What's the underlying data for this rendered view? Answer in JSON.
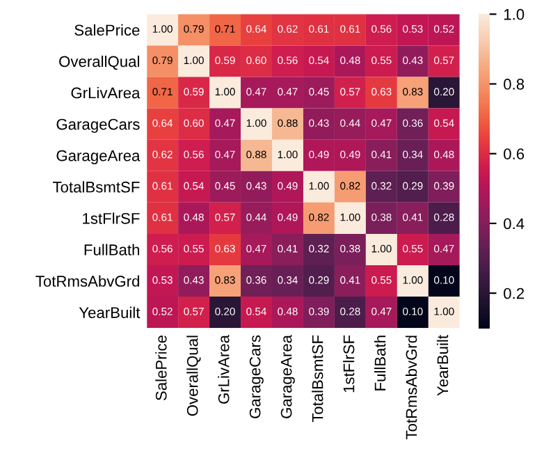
{
  "chart_data": {
    "type": "heatmap",
    "categories": [
      "SalePrice",
      "OverallQual",
      "GrLivArea",
      "GarageCars",
      "GarageArea",
      "TotalBsmtSF",
      "1stFlrSF",
      "FullBath",
      "TotRmsAbvGrd",
      "YearBuilt"
    ],
    "y_categories": [
      "SalePrice",
      "OverallQual",
      "GrLivArea",
      "GarageCars",
      "GarageArea",
      "TotalBsmtSF",
      "1stFlrSF",
      "FullBath",
      "TotRmsAbvGrd",
      "YearBuilt"
    ],
    "cells": [
      [
        1.0,
        0.79,
        0.71,
        0.64,
        0.62,
        0.61,
        0.61,
        0.56,
        0.53,
        0.52
      ],
      [
        0.79,
        1.0,
        0.59,
        0.6,
        0.56,
        0.54,
        0.48,
        0.55,
        0.43,
        0.57
      ],
      [
        0.71,
        0.59,
        1.0,
        0.47,
        0.47,
        0.45,
        0.57,
        0.63,
        0.83,
        0.2
      ],
      [
        0.64,
        0.6,
        0.47,
        1.0,
        0.88,
        0.43,
        0.44,
        0.47,
        0.36,
        0.54
      ],
      [
        0.62,
        0.56,
        0.47,
        0.88,
        1.0,
        0.49,
        0.49,
        0.41,
        0.34,
        0.48
      ],
      [
        0.61,
        0.54,
        0.45,
        0.43,
        0.49,
        1.0,
        0.82,
        0.32,
        0.29,
        0.39
      ],
      [
        0.61,
        0.48,
        0.57,
        0.44,
        0.49,
        0.82,
        1.0,
        0.38,
        0.41,
        0.28
      ],
      [
        0.56,
        0.55,
        0.63,
        0.47,
        0.41,
        0.32,
        0.38,
        1.0,
        0.55,
        0.47
      ],
      [
        0.53,
        0.43,
        0.83,
        0.36,
        0.34,
        0.29,
        0.41,
        0.55,
        1.0,
        0.1
      ],
      [
        0.52,
        0.57,
        0.2,
        0.54,
        0.48,
        0.39,
        0.28,
        0.47,
        0.1,
        1.0
      ]
    ],
    "cell_labels": [
      [
        "1.00",
        "0.79",
        "0.71",
        "0.64",
        "0.62",
        "0.61",
        "0.61",
        "0.56",
        "0.53",
        "0.52"
      ],
      [
        "0.79",
        "1.00",
        "0.59",
        "0.60",
        "0.56",
        "0.54",
        "0.48",
        "0.55",
        "0.43",
        "0.57"
      ],
      [
        "0.71",
        "0.59",
        "1.00",
        "0.47",
        "0.47",
        "0.45",
        "0.57",
        "0.63",
        "0.83",
        "0.20"
      ],
      [
        "0.64",
        "0.60",
        "0.47",
        "1.00",
        "0.88",
        "0.43",
        "0.44",
        "0.47",
        "0.36",
        "0.54"
      ],
      [
        "0.62",
        "0.56",
        "0.47",
        "0.88",
        "1.00",
        "0.49",
        "0.49",
        "0.41",
        "0.34",
        "0.48"
      ],
      [
        "0.61",
        "0.54",
        "0.45",
        "0.43",
        "0.49",
        "1.00",
        "0.82",
        "0.32",
        "0.29",
        "0.39"
      ],
      [
        "0.61",
        "0.48",
        "0.57",
        "0.44",
        "0.49",
        "0.82",
        "1.00",
        "0.38",
        "0.41",
        "0.28"
      ],
      [
        "0.56",
        "0.55",
        "0.63",
        "0.47",
        "0.41",
        "0.32",
        "0.38",
        "1.00",
        "0.55",
        "0.47"
      ],
      [
        "0.53",
        "0.43",
        "0.83",
        "0.36",
        "0.34",
        "0.29",
        "0.41",
        "0.55",
        "1.00",
        "0.10"
      ],
      [
        "0.52",
        "0.57",
        "0.20",
        "0.54",
        "0.48",
        "0.39",
        "0.28",
        "0.47",
        "0.10",
        "1.00"
      ]
    ],
    "clim": [
      0.1,
      1.0
    ],
    "cticks": [
      0.2,
      0.4,
      0.6,
      0.8,
      {
        "value": 1.0,
        "label": "1.0"
      }
    ],
    "data_labels": true
  }
}
